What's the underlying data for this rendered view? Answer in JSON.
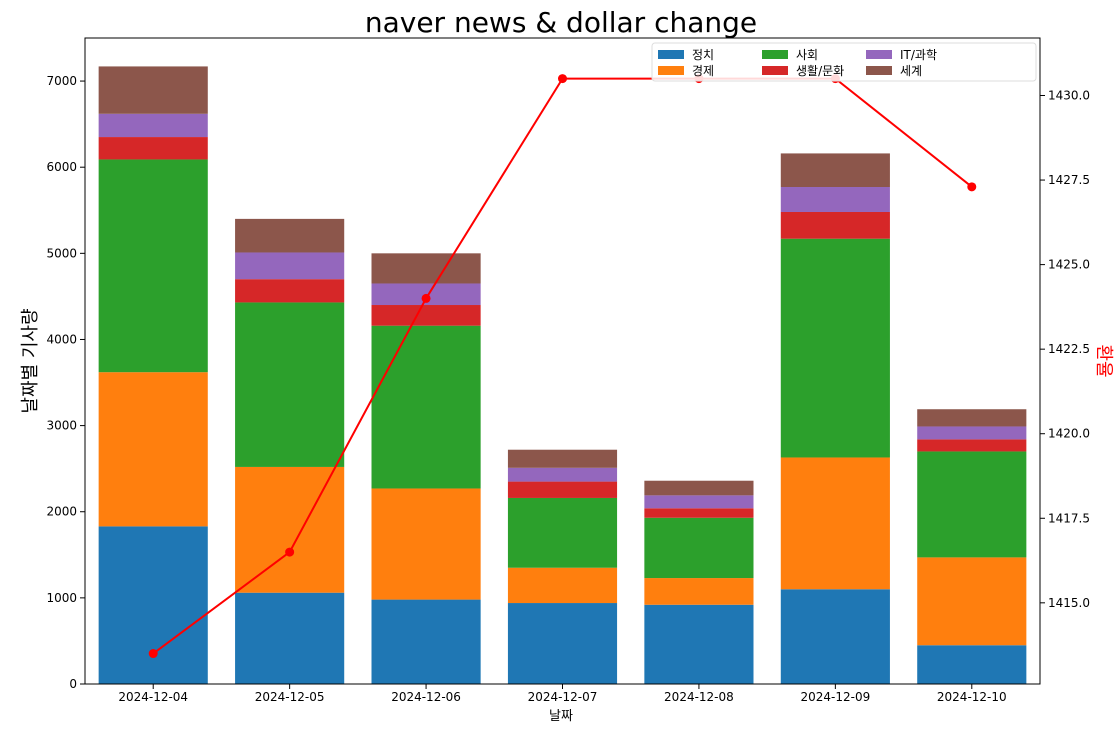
{
  "chart_data": {
    "type": "bar",
    "stacked": true,
    "title": "naver news & dollar change",
    "xlabel": "날짜",
    "ylabel": "날짜별 기사량",
    "y2label": "환율",
    "categories": [
      "2024-12-04",
      "2024-12-05",
      "2024-12-06",
      "2024-12-07",
      "2024-12-08",
      "2024-12-09",
      "2024-12-10"
    ],
    "ylim": [
      0,
      7500
    ],
    "yticks": [
      "0",
      "1000",
      "2000",
      "3000",
      "4000",
      "5000",
      "6000",
      "7000"
    ],
    "y2lim": [
      1412.6,
      1431.7
    ],
    "y2ticks": [
      "1415.0",
      "1417.5",
      "1420.0",
      "1422.5",
      "1425.0",
      "1427.5",
      "1430.0"
    ],
    "grid": false,
    "legend_position": "top-right",
    "series": [
      {
        "name": "정치",
        "color": "#1f77b4",
        "values": [
          1830,
          1060,
          980,
          940,
          920,
          1100,
          450
        ]
      },
      {
        "name": "경제",
        "color": "#ff7f0e",
        "values": [
          1790,
          1460,
          1290,
          410,
          310,
          1530,
          1020
        ]
      },
      {
        "name": "사회",
        "color": "#2ca02c",
        "values": [
          2470,
          1910,
          1890,
          810,
          700,
          2540,
          1230
        ]
      },
      {
        "name": "생활/문화",
        "color": "#d62728",
        "values": [
          260,
          270,
          240,
          190,
          110,
          310,
          140
        ]
      },
      {
        "name": "IT/과학",
        "color": "#9467bd",
        "values": [
          270,
          310,
          250,
          160,
          150,
          290,
          150
        ]
      },
      {
        "name": "세계",
        "color": "#8c564b",
        "values": [
          550,
          390,
          350,
          210,
          170,
          390,
          200
        ]
      }
    ],
    "line_series": {
      "name": "환율",
      "color": "#ff0000",
      "axis": "right",
      "values": [
        1413.5,
        1416.5,
        1424.0,
        1430.5,
        1430.5,
        1430.5,
        1427.3
      ]
    }
  }
}
